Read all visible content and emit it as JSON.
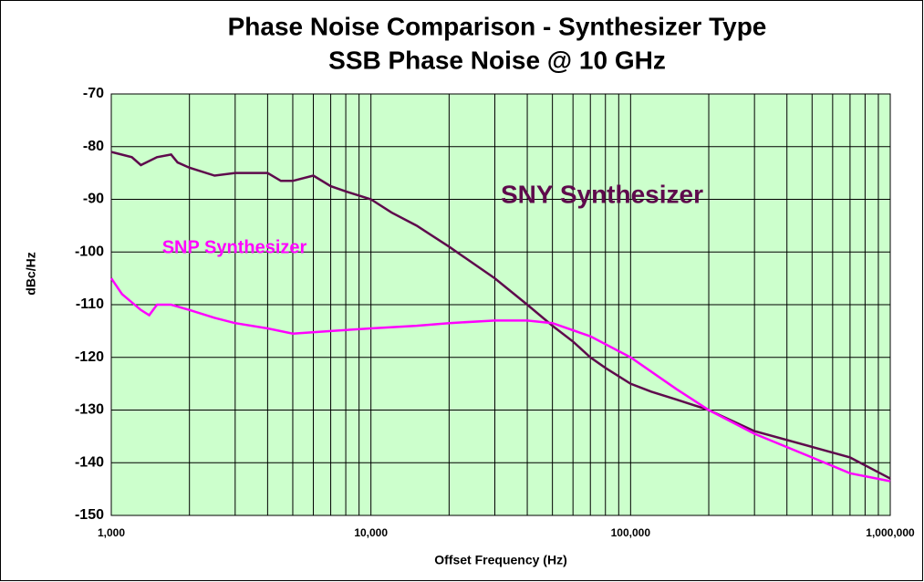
{
  "chart_data": {
    "type": "line",
    "title": "Phase Noise Comparison - Synthesizer Type",
    "subtitle": "SSB Phase Noise @ 10 GHz",
    "x_label": "Offset Frequency (Hz)",
    "y_label": "dBc/Hz",
    "log_x": true,
    "grid": true,
    "minor_grid": true,
    "background": "#ccffcc",
    "xlim": [
      1000,
      1000000
    ],
    "xticks": [
      {
        "value": 1000,
        "label": "1,000"
      },
      {
        "value": 10000,
        "label": "10,000"
      },
      {
        "value": 100000,
        "label": "100,000"
      },
      {
        "value": 1000000,
        "label": "1,000,000"
      }
    ],
    "ylim": [
      -150,
      -70
    ],
    "yticks": [
      -150,
      -140,
      -130,
      -120,
      -110,
      -100,
      -90,
      -80,
      -70
    ],
    "series": [
      {
        "name": "SNY Synthesizer",
        "color": "#5e0a4c",
        "x": [
          1000,
          1200,
          1300,
          1500,
          1700,
          1800,
          2000,
          2500,
          3000,
          4000,
          4500,
          5000,
          6000,
          7000,
          8000,
          10000,
          12000,
          15000,
          20000,
          30000,
          40000,
          50000,
          60000,
          70000,
          80000,
          100000,
          120000,
          150000,
          200000,
          300000,
          500000,
          700000,
          1000000
        ],
        "values": [
          -81,
          -82,
          -83.5,
          -82,
          -81.5,
          -83,
          -84,
          -85.5,
          -85,
          -85,
          -86.5,
          -86.5,
          -85.5,
          -87.5,
          -88.5,
          -90,
          -92.5,
          -95,
          -99,
          -105,
          -110,
          -114,
          -117,
          -120,
          -122,
          -125,
          -126.5,
          -128,
          -130,
          -134,
          -137,
          -139,
          -143
        ]
      },
      {
        "name": "SNP Synthesizer",
        "color": "#ff00ff",
        "x": [
          1000,
          1100,
          1300,
          1400,
          1500,
          1700,
          2000,
          2500,
          3000,
          4000,
          5000,
          7000,
          10000,
          15000,
          20000,
          30000,
          40000,
          50000,
          70000,
          100000,
          150000,
          200000,
          300000,
          500000,
          700000,
          1000000
        ],
        "values": [
          -105,
          -108,
          -111,
          -112,
          -110,
          -110,
          -111,
          -112.5,
          -113.5,
          -114.5,
          -115.5,
          -115,
          -114.5,
          -114,
          -113.5,
          -113,
          -113,
          -113.5,
          -116,
          -120,
          -126,
          -130,
          -134.5,
          -139,
          -142,
          -143.5
        ]
      }
    ]
  }
}
